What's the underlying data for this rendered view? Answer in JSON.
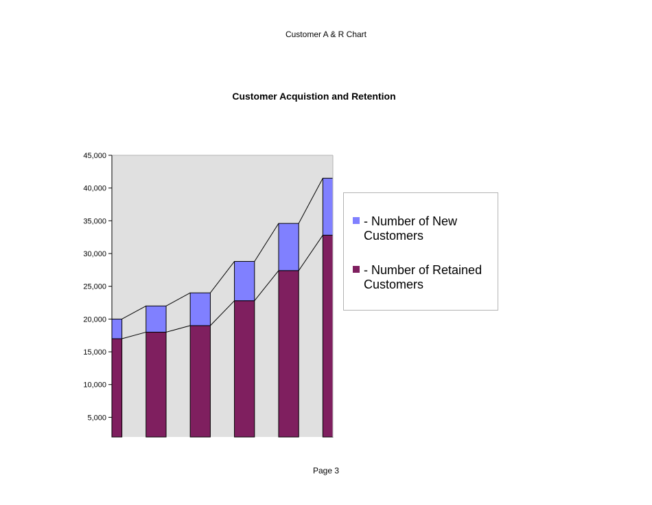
{
  "header": {
    "text": "Customer A & R Chart"
  },
  "footer": {
    "text": "Page 3"
  },
  "colors": {
    "new": "#8080ff",
    "retained": "#7f1f5f",
    "plot_bg": "#e0e0e0"
  },
  "chart_data": {
    "type": "bar",
    "stacked": true,
    "title": "Customer Acquistion and Retention",
    "xlabel": "",
    "ylabel": "",
    "ylim": [
      2000,
      45000
    ],
    "yticks": [
      5000,
      10000,
      15000,
      20000,
      25000,
      30000,
      35000,
      40000,
      45000
    ],
    "ytick_labels": [
      "5,000",
      "10,000",
      "15,000",
      "20,000",
      "25,000",
      "30,000",
      "35,000",
      "40,000",
      "45,000"
    ],
    "categories": [
      "",
      "",
      "",
      "",
      "",
      ""
    ],
    "series": [
      {
        "name": "- Number of Retained Customers",
        "values": [
          17000,
          18000,
          19000,
          22800,
          27400,
          32800
        ]
      },
      {
        "name": "- Number of New Customers",
        "values": [
          3000,
          4000,
          5000,
          6000,
          7200,
          8700
        ]
      }
    ],
    "legend": {
      "position": "right"
    },
    "grid": false,
    "series_lines": true
  }
}
